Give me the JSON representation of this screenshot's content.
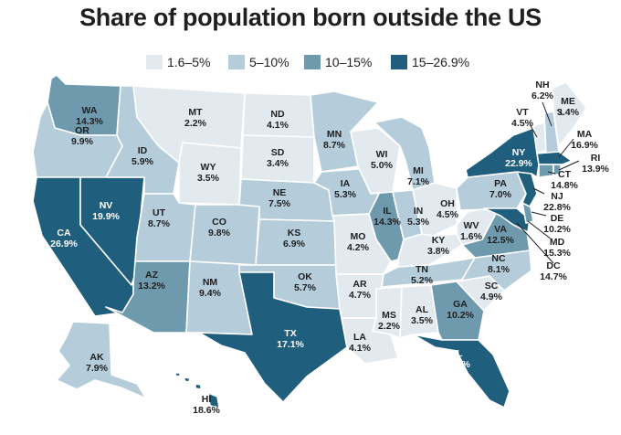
{
  "title": "Share of population born outside the US",
  "legend": [
    {
      "label": "1.6–5%",
      "color": "#e2eaf0"
    },
    {
      "label": "5–10%",
      "color": "#b5ccda"
    },
    {
      "label": "10–15%",
      "color": "#6f99ad"
    },
    {
      "label": "15–26.9%",
      "color": "#1f5f7d"
    }
  ],
  "states": [
    {
      "abbr": "WA",
      "value": "14.3%",
      "bin": 2
    },
    {
      "abbr": "OR",
      "value": "9.9%",
      "bin": 1
    },
    {
      "abbr": "CA",
      "value": "26.9%",
      "bin": 3
    },
    {
      "abbr": "NV",
      "value": "19.9%",
      "bin": 3
    },
    {
      "abbr": "ID",
      "value": "5.9%",
      "bin": 1
    },
    {
      "abbr": "MT",
      "value": "2.2%",
      "bin": 0
    },
    {
      "abbr": "WY",
      "value": "3.5%",
      "bin": 0
    },
    {
      "abbr": "UT",
      "value": "8.7%",
      "bin": 1
    },
    {
      "abbr": "AZ",
      "value": "13.2%",
      "bin": 2
    },
    {
      "abbr": "CO",
      "value": "9.8%",
      "bin": 1
    },
    {
      "abbr": "NM",
      "value": "9.4%",
      "bin": 1
    },
    {
      "abbr": "ND",
      "value": "4.1%",
      "bin": 0
    },
    {
      "abbr": "SD",
      "value": "3.4%",
      "bin": 0
    },
    {
      "abbr": "NE",
      "value": "7.5%",
      "bin": 1
    },
    {
      "abbr": "KS",
      "value": "6.9%",
      "bin": 1
    },
    {
      "abbr": "OK",
      "value": "5.7%",
      "bin": 1
    },
    {
      "abbr": "TX",
      "value": "17.1%",
      "bin": 3
    },
    {
      "abbr": "MN",
      "value": "8.7%",
      "bin": 1
    },
    {
      "abbr": "IA",
      "value": "5.3%",
      "bin": 1
    },
    {
      "abbr": "MO",
      "value": "4.2%",
      "bin": 0
    },
    {
      "abbr": "AR",
      "value": "4.7%",
      "bin": 0
    },
    {
      "abbr": "LA",
      "value": "4.1%",
      "bin": 0
    },
    {
      "abbr": "WI",
      "value": "5.0%",
      "bin": 0
    },
    {
      "abbr": "IL",
      "value": "14.3%",
      "bin": 2
    },
    {
      "abbr": "MI",
      "value": "7.1%",
      "bin": 1
    },
    {
      "abbr": "IN",
      "value": "5.3%",
      "bin": 1
    },
    {
      "abbr": "OH",
      "value": "4.5%",
      "bin": 0
    },
    {
      "abbr": "KY",
      "value": "3.8%",
      "bin": 0
    },
    {
      "abbr": "TN",
      "value": "5.2%",
      "bin": 1
    },
    {
      "abbr": "MS",
      "value": "2.2%",
      "bin": 0
    },
    {
      "abbr": "AL",
      "value": "3.5%",
      "bin": 0
    },
    {
      "abbr": "GA",
      "value": "10.2%",
      "bin": 2
    },
    {
      "abbr": "FL",
      "value": "20.9%",
      "bin": 3
    },
    {
      "abbr": "SC",
      "value": "4.9%",
      "bin": 0
    },
    {
      "abbr": "NC",
      "value": "8.1%",
      "bin": 1
    },
    {
      "abbr": "VA",
      "value": "12.5%",
      "bin": 2
    },
    {
      "abbr": "WV",
      "value": "1.6%",
      "bin": 0
    },
    {
      "abbr": "PA",
      "value": "7.0%",
      "bin": 1
    },
    {
      "abbr": "NY",
      "value": "22.9%",
      "bin": 3
    },
    {
      "abbr": "VT",
      "value": "4.5%",
      "bin": 0
    },
    {
      "abbr": "NH",
      "value": "6.2%",
      "bin": 1
    },
    {
      "abbr": "ME",
      "value": "3.4%",
      "bin": 0
    },
    {
      "abbr": "MA",
      "value": "16.9%",
      "bin": 3
    },
    {
      "abbr": "RI",
      "value": "13.9%",
      "bin": 2
    },
    {
      "abbr": "CT",
      "value": "14.8%",
      "bin": 2
    },
    {
      "abbr": "NJ",
      "value": "22.8%",
      "bin": 3
    },
    {
      "abbr": "DE",
      "value": "10.2%",
      "bin": 2
    },
    {
      "abbr": "MD",
      "value": "15.3%",
      "bin": 3
    },
    {
      "abbr": "DC",
      "value": "14.7%",
      "bin": 2
    },
    {
      "abbr": "AK",
      "value": "7.9%",
      "bin": 1
    },
    {
      "abbr": "HI",
      "value": "18.6%",
      "bin": 3
    }
  ]
}
